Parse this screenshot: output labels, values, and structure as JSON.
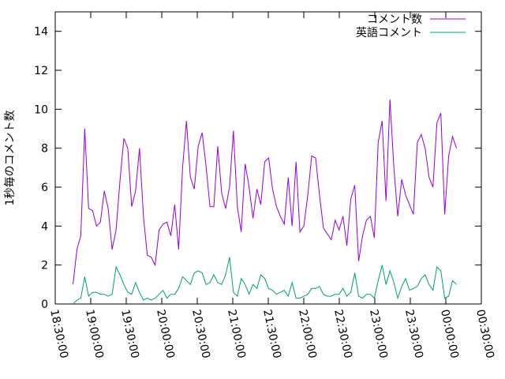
{
  "chart_data": {
    "type": "line",
    "title": "",
    "xlabel": "",
    "ylabel": "1秒毎のコメント数",
    "ylim": [
      0,
      15
    ],
    "yticks": [
      0,
      2,
      4,
      6,
      8,
      10,
      12,
      14
    ],
    "x_ticks": [
      "18:30:00",
      "19:00:00",
      "19:30:00",
      "20:00:00",
      "20:30:00",
      "21:00:00",
      "21:30:00",
      "22:00:00",
      "22:30:00",
      "23:00:00",
      "23:30:00",
      "00:00:00",
      "00:30:00"
    ],
    "legend_position": "top-right",
    "grid": false,
    "series": [
      {
        "name": "コメント数",
        "color": "#9400d3",
        "values": [
          1.0,
          2.8,
          3.5,
          9.0,
          4.9,
          4.8,
          4.0,
          4.2,
          5.8,
          4.9,
          2.8,
          3.8,
          6.3,
          8.5,
          8.0,
          5.0,
          5.8,
          8.0,
          4.5,
          2.5,
          2.4,
          2.0,
          3.8,
          4.1,
          4.2,
          3.5,
          5.1,
          2.8,
          7.0,
          9.4,
          6.5,
          5.9,
          8.1,
          8.8,
          7.1,
          5.0,
          5.0,
          8.1,
          5.7,
          4.9,
          6.0,
          8.9,
          5.0,
          3.7,
          7.2,
          6.0,
          4.4,
          5.9,
          5.1,
          7.3,
          7.5,
          5.9,
          5.0,
          4.5,
          4.1,
          6.5,
          4.0,
          7.3,
          3.7,
          4.0,
          5.6,
          7.6,
          7.5,
          5.6,
          3.9,
          3.6,
          3.3,
          4.3,
          3.8,
          4.5,
          3.0,
          5.4,
          6.1,
          2.2,
          3.5,
          4.3,
          4.5,
          3.4,
          8.3,
          9.4,
          5.3,
          10.5,
          7.0,
          4.5,
          6.4,
          5.6,
          5.1,
          4.6,
          8.3,
          8.7,
          8.0,
          6.5,
          6.0,
          9.3,
          9.8,
          4.6,
          7.6,
          8.6,
          8.0
        ]
      },
      {
        "name": "英語コメント",
        "color": "#009e73",
        "values": [
          0.0,
          0.2,
          0.3,
          1.4,
          0.4,
          0.6,
          0.6,
          0.5,
          0.5,
          0.4,
          0.5,
          1.9,
          1.5,
          1.0,
          0.6,
          0.5,
          1.1,
          0.6,
          0.2,
          0.3,
          0.2,
          0.3,
          0.5,
          0.7,
          0.3,
          0.5,
          0.5,
          0.8,
          1.4,
          1.2,
          1.0,
          1.6,
          1.7,
          1.6,
          1.0,
          1.1,
          1.5,
          1.1,
          1.0,
          1.5,
          2.4,
          0.6,
          0.4,
          1.3,
          1.0,
          0.5,
          1.0,
          0.8,
          1.5,
          1.3,
          0.8,
          0.7,
          0.5,
          0.6,
          0.7,
          0.4,
          1.1,
          0.3,
          0.3,
          0.4,
          0.5,
          0.8,
          0.8,
          0.9,
          0.5,
          0.4,
          0.4,
          0.5,
          0.5,
          0.8,
          0.4,
          0.6,
          1.6,
          0.4,
          0.3,
          0.5,
          0.5,
          0.3,
          1.2,
          2.0,
          1.0,
          1.7,
          1.1,
          0.3,
          0.9,
          1.3,
          0.7,
          0.8,
          0.9,
          1.3,
          1.5,
          1.0,
          0.7,
          1.9,
          1.7,
          0.3,
          0.4,
          1.2,
          1.0
        ]
      }
    ]
  }
}
